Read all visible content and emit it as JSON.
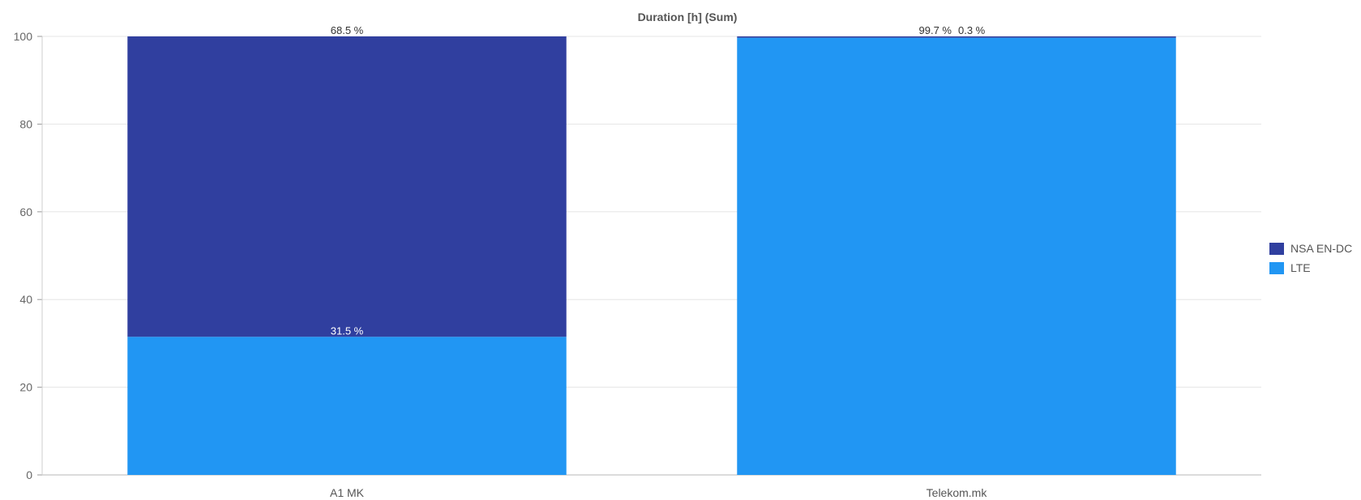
{
  "chart_data": {
    "type": "bar",
    "stacked": true,
    "title": "Duration [h] (Sum)",
    "xlabel": "",
    "ylabel": "",
    "ylim": [
      0,
      100
    ],
    "yticks": [
      "0",
      "20",
      "40",
      "60",
      "80",
      "100"
    ],
    "categories": [
      "A1 MK",
      "Telekom.mk"
    ],
    "series": [
      {
        "name": "LTE",
        "color": "#2196f3",
        "values": [
          31.5,
          99.7
        ],
        "labels": [
          "31.5 %",
          "99.7 %"
        ]
      },
      {
        "name": "NSA EN-DC",
        "color": "#303f9f",
        "values": [
          68.5,
          0.3
        ],
        "labels": [
          "68.5 %",
          "0.3 %"
        ]
      }
    ],
    "legend_position": "right",
    "grid": true
  },
  "legend": {
    "items": [
      {
        "label": "NSA EN-DC",
        "color": "#303f9f"
      },
      {
        "label": "LTE",
        "color": "#2196f3"
      }
    ]
  }
}
